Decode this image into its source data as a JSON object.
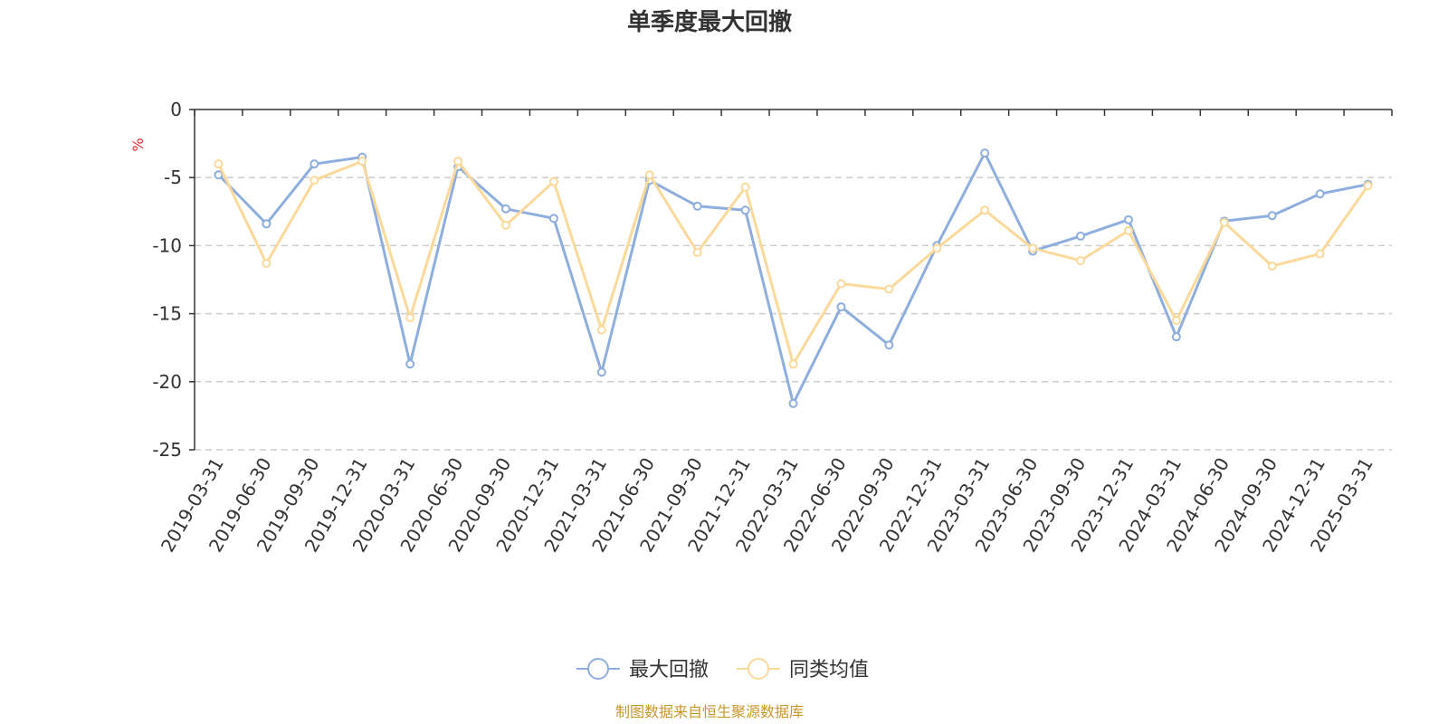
{
  "chart_data": {
    "type": "line",
    "title": "单季度最大回撤",
    "unit": "%",
    "categories": [
      "2019-03-31",
      "2019-06-30",
      "2019-09-30",
      "2019-12-31",
      "2020-03-31",
      "2020-06-30",
      "2020-09-30",
      "2020-12-31",
      "2021-03-31",
      "2021-06-30",
      "2021-09-30",
      "2021-12-31",
      "2022-03-31",
      "2022-06-30",
      "2022-09-30",
      "2022-12-31",
      "2023-03-31",
      "2023-06-30",
      "2023-09-30",
      "2023-12-31",
      "2024-03-31",
      "2024-06-30",
      "2024-09-30",
      "2024-12-31",
      "2025-03-31"
    ],
    "series": [
      {
        "name": "最大回撤",
        "color": "#8eaedd",
        "values": [
          -4.8,
          -8.4,
          -4.0,
          -3.5,
          -18.7,
          -4.2,
          -7.3,
          -8.0,
          -19.3,
          -5.2,
          -7.1,
          -7.4,
          -21.6,
          -14.5,
          -17.3,
          -10.0,
          -3.2,
          -10.4,
          -9.3,
          -8.1,
          -16.7,
          -8.2,
          -7.8,
          -6.2,
          -5.5
        ]
      },
      {
        "name": "同类均值",
        "color": "#fbd99a",
        "values": [
          -4.0,
          -11.3,
          -5.2,
          -3.8,
          -15.3,
          -3.8,
          -8.5,
          -5.3,
          -16.2,
          -4.8,
          -10.5,
          -5.7,
          -18.7,
          -12.8,
          -13.2,
          -10.2,
          -7.4,
          -10.2,
          -11.1,
          -8.9,
          -15.5,
          -8.3,
          -11.5,
          -10.6,
          -5.6
        ]
      }
    ],
    "yticks": [
      "0",
      "-5",
      "-10",
      "-15",
      "-20",
      "-25"
    ],
    "ylim": [
      -25,
      0
    ],
    "grid": true,
    "legend_position": "bottom-center"
  },
  "source": "制图数据来自恒生聚源数据库"
}
